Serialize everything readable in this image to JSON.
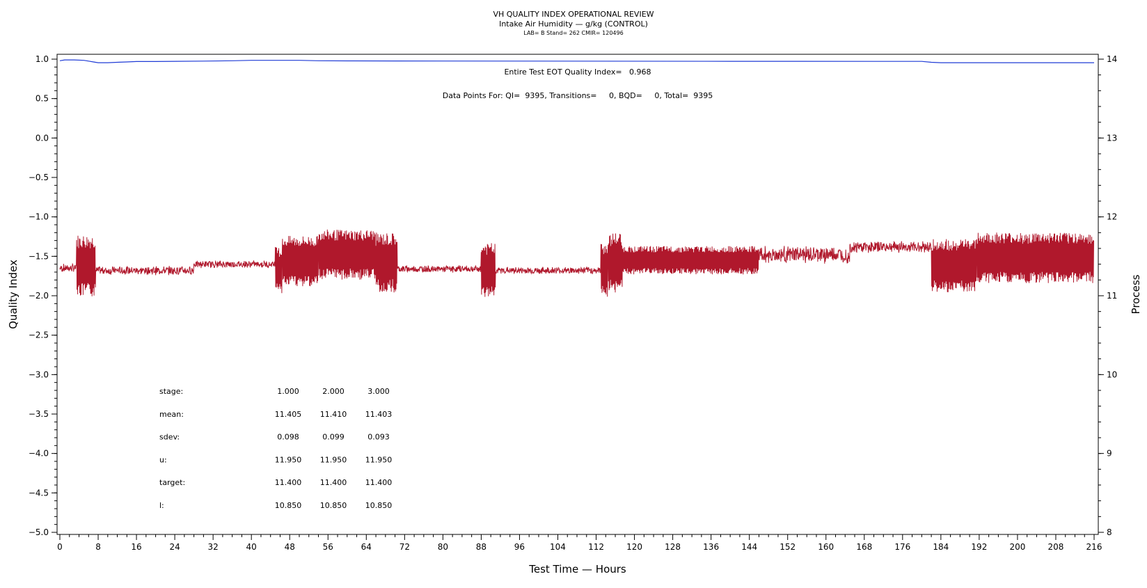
{
  "chart_data": {
    "type": "line",
    "title": "VH QUALITY INDEX OPERATIONAL REVIEW",
    "subtitle": "Intake Air Humidity — g/kg (CONTROL)",
    "subtitle2": "LAB= B Stand= 262 CMIR= 120496",
    "xlabel": "Test Time — Hours",
    "ylabel": "Quality Index",
    "ylabel_right": "Process",
    "xlim": [
      0,
      216
    ],
    "ylim": [
      -5.0,
      1.0
    ],
    "ylim_right": [
      8,
      14
    ],
    "x_ticks": [
      "0",
      "8",
      "16",
      "24",
      "32",
      "40",
      "48",
      "56",
      "64",
      "72",
      "80",
      "88",
      "96",
      "104",
      "112",
      "120",
      "128",
      "136",
      "144",
      "152",
      "160",
      "168",
      "176",
      "184",
      "192",
      "200",
      "208",
      "216"
    ],
    "y_ticks": [
      "1.0",
      "0.5",
      "0.0",
      "−0.5",
      "−1.0",
      "−1.5",
      "−2.0",
      "−2.5",
      "−3.0",
      "−3.5",
      "−4.0",
      "−4.5",
      "−5.0"
    ],
    "y_ticks_right": [
      "14",
      "13",
      "12",
      "11",
      "10",
      "9",
      "8"
    ],
    "annotations": {
      "quality_index": "Entire Test EOT Quality Index=   0.968",
      "data_points": "Data Points For: QI=  9395, Transitions=     0, BQD=     0, Total=  9395"
    },
    "series": [
      {
        "color": "#1f3bd6",
        "axis": "left",
        "x": [
          0,
          1,
          3,
          5,
          6,
          7,
          8,
          10,
          12,
          14,
          16,
          20,
          30,
          36,
          40,
          45,
          50,
          54,
          60,
          70,
          100,
          140,
          170,
          180,
          182,
          184,
          200,
          216
        ],
        "values": [
          0.98,
          0.99,
          0.99,
          0.985,
          0.975,
          0.965,
          0.955,
          0.955,
          0.96,
          0.965,
          0.97,
          0.97,
          0.975,
          0.98,
          0.985,
          0.985,
          0.985,
          0.98,
          0.978,
          0.977,
          0.975,
          0.973,
          0.972,
          0.972,
          0.96,
          0.955,
          0.955,
          0.955
        ]
      },
      {
        "color": "#b0182c",
        "axis": "right",
        "segments": [
          {
            "x0": 0,
            "x1": 3.5,
            "y": 11.35,
            "amp": 0.06
          },
          {
            "x0": 3.5,
            "x1": 7.5,
            "y": 11.38,
            "amp": 0.4
          },
          {
            "x0": 7.5,
            "x1": 28,
            "y": 11.32,
            "amp": 0.06
          },
          {
            "x0": 28,
            "x1": 45,
            "y": 11.4,
            "amp": 0.05
          },
          {
            "x0": 45,
            "x1": 46.5,
            "y": 11.32,
            "amp": 0.3
          },
          {
            "x0": 46.5,
            "x1": 54,
            "y": 11.44,
            "amp": 0.32
          },
          {
            "x0": 54,
            "x1": 66,
            "y": 11.52,
            "amp": 0.32
          },
          {
            "x0": 66,
            "x1": 70.5,
            "y": 11.42,
            "amp": 0.38
          },
          {
            "x0": 70.5,
            "x1": 88,
            "y": 11.34,
            "amp": 0.05
          },
          {
            "x0": 88,
            "x1": 91,
            "y": 11.32,
            "amp": 0.35
          },
          {
            "x0": 91,
            "x1": 113,
            "y": 11.32,
            "amp": 0.05
          },
          {
            "x0": 113,
            "x1": 114.5,
            "y": 11.32,
            "amp": 0.35
          },
          {
            "x0": 114.5,
            "x1": 117.5,
            "y": 11.42,
            "amp": 0.38
          },
          {
            "x0": 117.5,
            "x1": 146,
            "y": 11.45,
            "amp": 0.18
          },
          {
            "x0": 146,
            "x1": 165,
            "y": 11.52,
            "amp": 0.12
          },
          {
            "x0": 165,
            "x1": 182,
            "y": 11.62,
            "amp": 0.08
          },
          {
            "x0": 182,
            "x1": 191.5,
            "y": 11.38,
            "amp": 0.34
          },
          {
            "x0": 191.5,
            "x1": 216,
            "y": 11.48,
            "amp": 0.32
          }
        ]
      }
    ]
  },
  "stats_table": {
    "rows": [
      {
        "label": "stage:",
        "v1": "1.000",
        "v2": "2.000",
        "v3": "3.000"
      },
      {
        "label": "mean:",
        "v1": "11.405",
        "v2": "11.410",
        "v3": "11.403"
      },
      {
        "label": "sdev:",
        "v1": "0.098",
        "v2": "0.099",
        "v3": "0.093"
      },
      {
        "label": "u:",
        "v1": "11.950",
        "v2": "11.950",
        "v3": "11.950"
      },
      {
        "label": "target:",
        "v1": "11.400",
        "v2": "11.400",
        "v3": "11.400"
      },
      {
        "label": "l:",
        "v1": "10.850",
        "v2": "10.850",
        "v3": "10.850"
      }
    ]
  }
}
